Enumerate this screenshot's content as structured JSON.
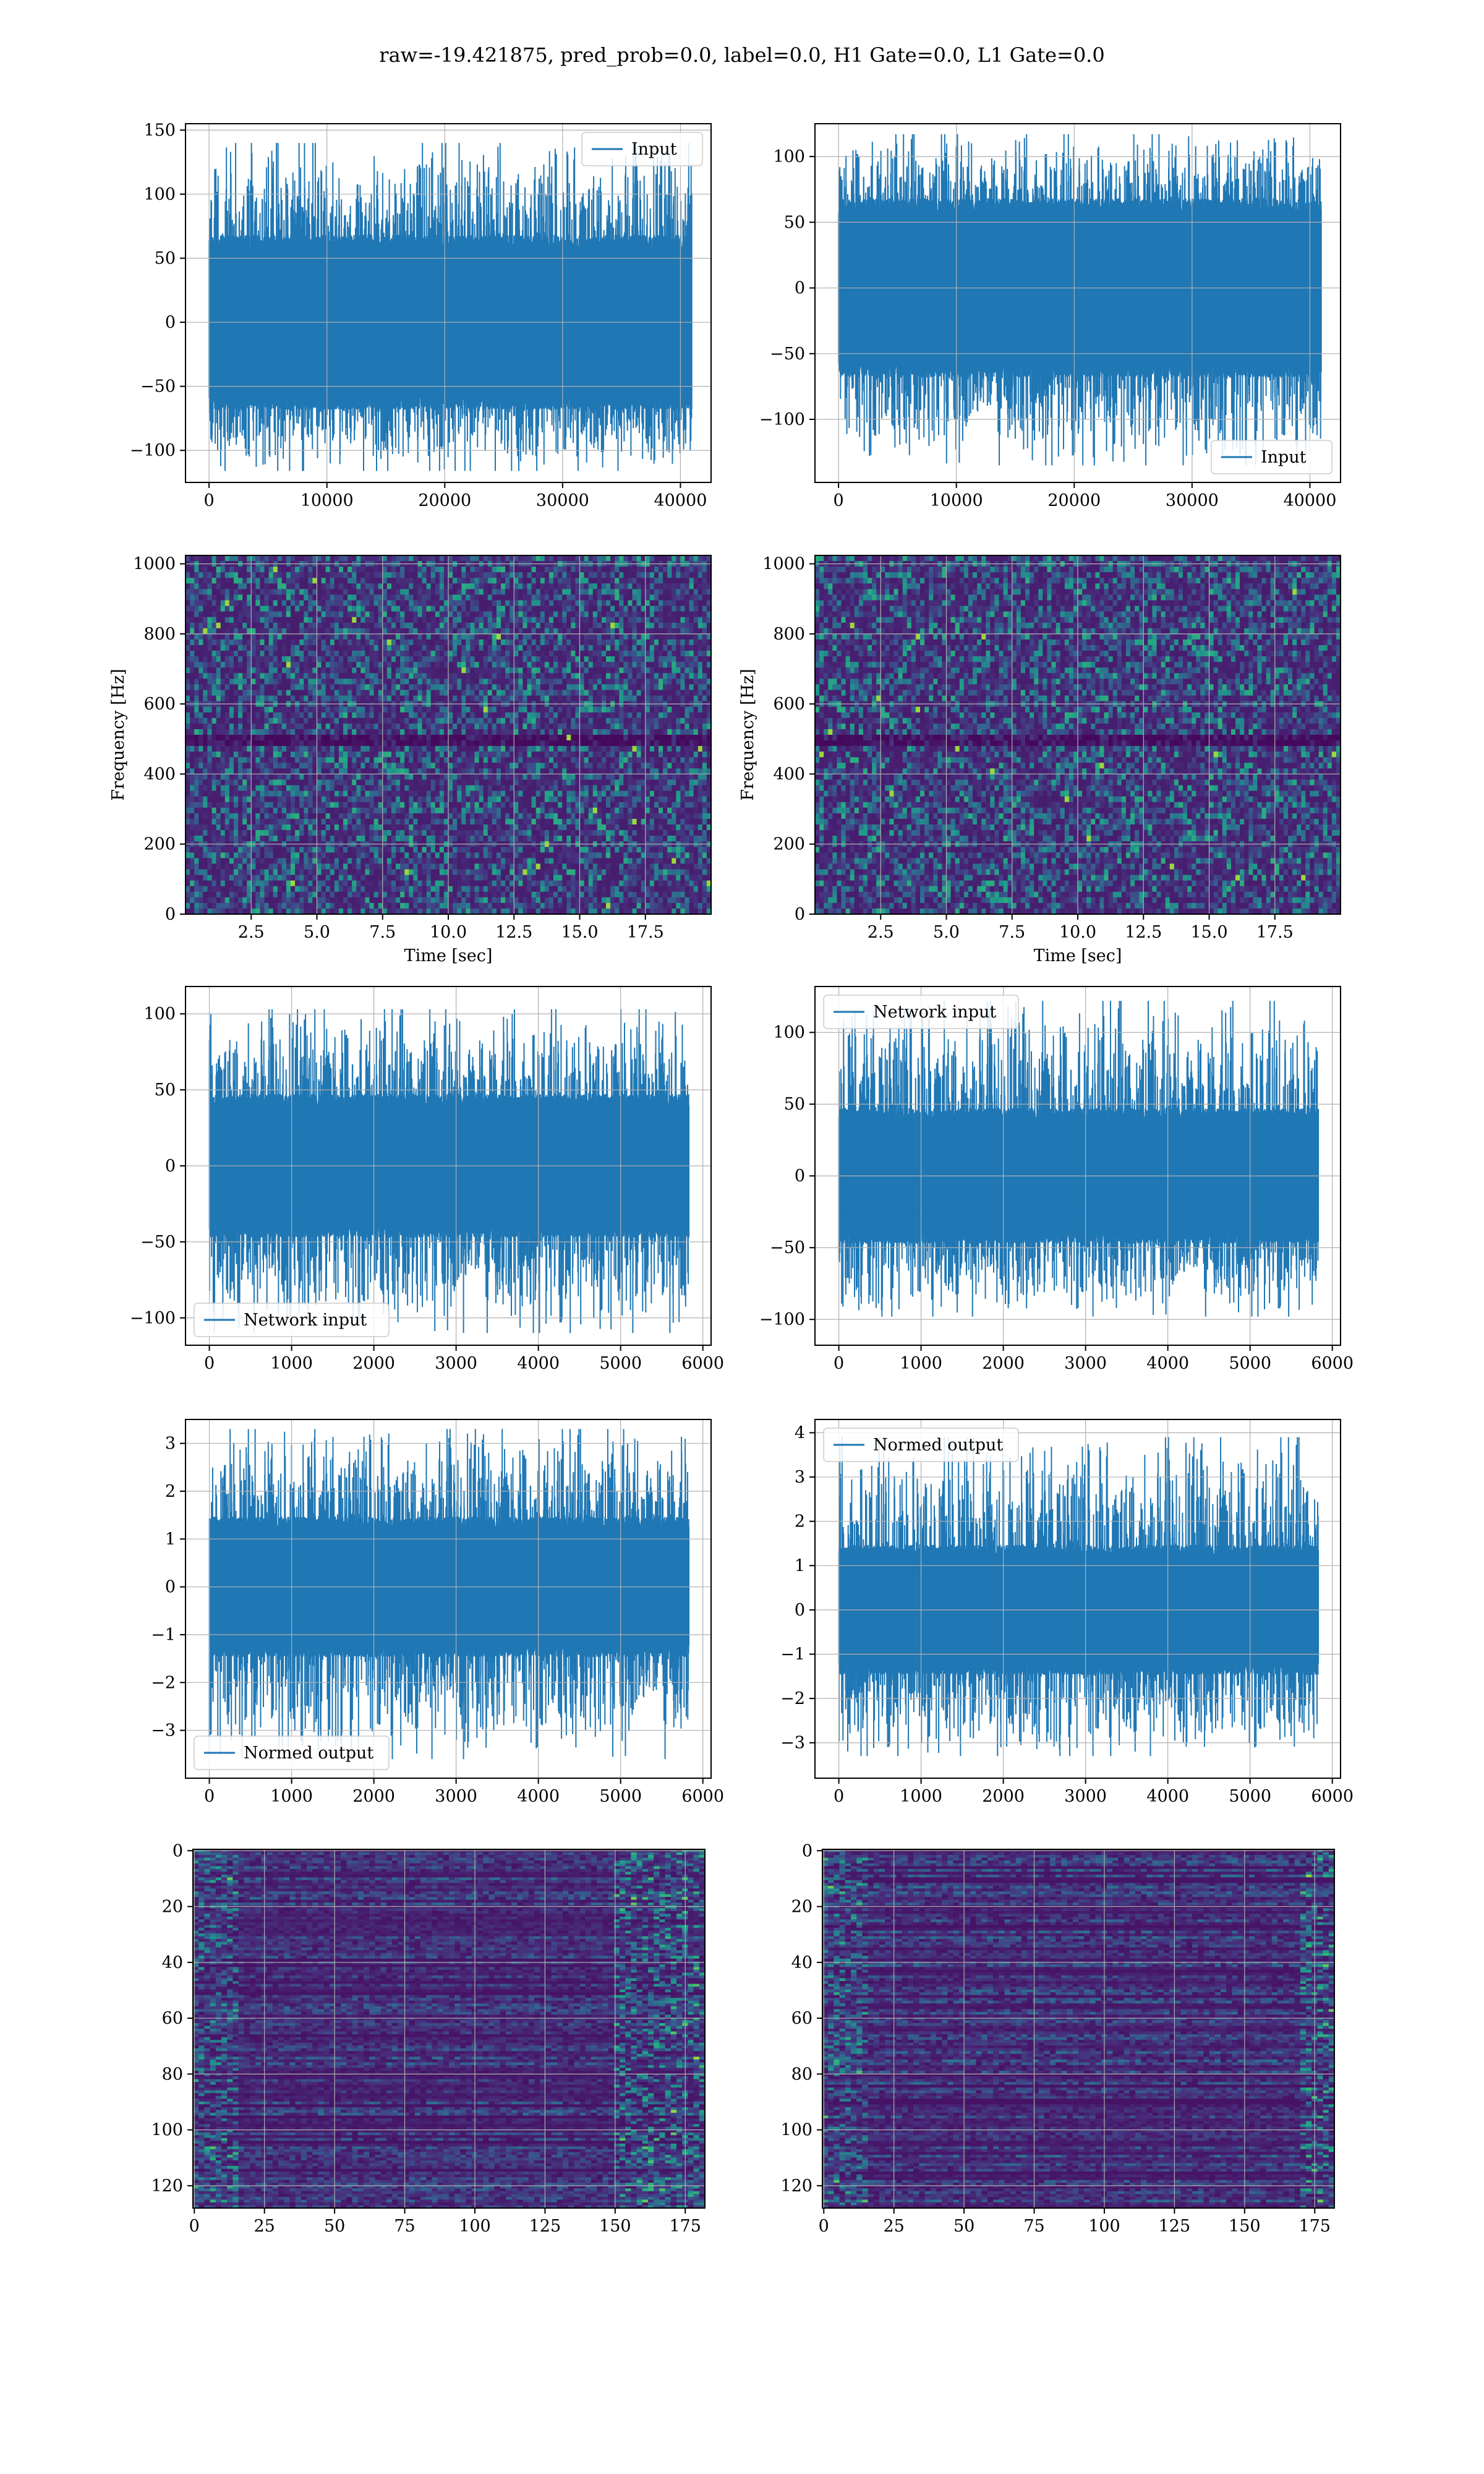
{
  "figure": {
    "suptitle": "raw=-19.421875, pred_prob=0.0, label=0.0, H1 Gate=0.0, L1 Gate=0.0"
  },
  "colors": {
    "series": "#1f77b4",
    "grid": "#b0b0b0",
    "colormap": "viridis"
  },
  "chart_data": [
    {
      "id": "input-left",
      "type": "line",
      "legend": "Input",
      "legend_loc": "upper right",
      "xlim": [
        -2000,
        42600
      ],
      "ylim": [
        -125,
        155
      ],
      "xticks": [
        0,
        10000,
        20000,
        30000,
        40000
      ],
      "yticks": [
        -100,
        -50,
        0,
        50,
        100,
        150
      ],
      "series": [
        {
          "name": "Input",
          "x_range": [
            0,
            40960
          ],
          "core_amplitude": 65,
          "peak_max": 140,
          "peak_min": -116,
          "n_samples": 40960
        }
      ]
    },
    {
      "id": "input-right",
      "type": "line",
      "legend": "Input",
      "legend_loc": "lower right",
      "xlim": [
        -2000,
        42600
      ],
      "ylim": [
        -148,
        125
      ],
      "xticks": [
        0,
        10000,
        20000,
        30000,
        40000
      ],
      "yticks": [
        -100,
        -50,
        0,
        50,
        100
      ],
      "series": [
        {
          "name": "Input",
          "x_range": [
            0,
            40960
          ],
          "core_amplitude": 65,
          "peak_max": 117,
          "peak_min": -135,
          "n_samples": 40960
        }
      ]
    },
    {
      "id": "spectrogram-left",
      "type": "heatmap",
      "xlabel": "Time [sec]",
      "ylabel": "Frequency [Hz]",
      "xlim": [
        0,
        20
      ],
      "ylim": [
        0,
        1024
      ],
      "xticks": [
        2.5,
        5.0,
        7.5,
        10.0,
        12.5,
        15.0,
        17.5
      ],
      "yticks": [
        0,
        200,
        400,
        600,
        800,
        1000
      ],
      "colormap": "viridis",
      "notes": "noise-like spectrogram with dark horizontal band near 500 Hz"
    },
    {
      "id": "spectrogram-right",
      "type": "heatmap",
      "xlabel": "Time [sec]",
      "ylabel": "Frequency [Hz]",
      "xlim": [
        0,
        20
      ],
      "ylim": [
        0,
        1024
      ],
      "xticks": [
        2.5,
        5.0,
        7.5,
        10.0,
        12.5,
        15.0,
        17.5
      ],
      "yticks": [
        0,
        200,
        400,
        600,
        800,
        1000
      ],
      "colormap": "viridis",
      "notes": "noise-like spectrogram with dark horizontal band near 500 Hz"
    },
    {
      "id": "network-input-left",
      "type": "line",
      "legend": "Network input",
      "legend_loc": "lower left",
      "xlim": [
        -290,
        6100
      ],
      "ylim": [
        -118,
        118
      ],
      "xticks": [
        0,
        1000,
        2000,
        3000,
        4000,
        5000,
        6000
      ],
      "yticks": [
        -100,
        -50,
        0,
        50,
        100
      ],
      "series": [
        {
          "name": "Network input",
          "x_range": [
            0,
            5830
          ],
          "core_amplitude": 45,
          "peak_max": 103,
          "peak_min": -110,
          "n_samples": 5830
        }
      ]
    },
    {
      "id": "network-input-right",
      "type": "line",
      "legend": "Network input",
      "legend_loc": "upper left",
      "xlim": [
        -290,
        6100
      ],
      "ylim": [
        -118,
        132
      ],
      "xticks": [
        0,
        1000,
        2000,
        3000,
        4000,
        5000,
        6000
      ],
      "yticks": [
        -100,
        -50,
        0,
        50,
        100
      ],
      "series": [
        {
          "name": "Network input",
          "x_range": [
            0,
            5830
          ],
          "core_amplitude": 45,
          "peak_max": 122,
          "peak_min": -98,
          "n_samples": 5830
        }
      ]
    },
    {
      "id": "normed-output-left",
      "type": "line",
      "legend": "Normed output",
      "legend_loc": "lower left",
      "xlim": [
        -290,
        6100
      ],
      "ylim": [
        -4.0,
        3.5
      ],
      "xticks": [
        0,
        1000,
        2000,
        3000,
        4000,
        5000,
        6000
      ],
      "yticks": [
        -3,
        -2,
        -1,
        0,
        1,
        2,
        3
      ],
      "series": [
        {
          "name": "Normed output",
          "x_range": [
            0,
            5830
          ],
          "core_amplitude": 1.4,
          "peak_max": 3.3,
          "peak_min": -3.6,
          "n_samples": 5830
        }
      ]
    },
    {
      "id": "normed-output-right",
      "type": "line",
      "legend": "Normed output",
      "legend_loc": "upper left",
      "xlim": [
        -290,
        6100
      ],
      "ylim": [
        -3.8,
        4.3
      ],
      "xticks": [
        0,
        1000,
        2000,
        3000,
        4000,
        5000,
        6000
      ],
      "yticks": [
        -3,
        -2,
        -1,
        0,
        1,
        2,
        3,
        4
      ],
      "series": [
        {
          "name": "Normed output",
          "x_range": [
            0,
            5830
          ],
          "core_amplitude": 1.4,
          "peak_max": 3.9,
          "peak_min": -3.3,
          "n_samples": 5830
        }
      ]
    },
    {
      "id": "features-left",
      "type": "heatmap",
      "xlim": [
        -0.5,
        182
      ],
      "ylim": [
        128,
        -0.5
      ],
      "xticks": [
        0,
        25,
        50,
        75,
        100,
        125,
        150,
        175
      ],
      "yticks": [
        0,
        20,
        40,
        60,
        80,
        100,
        120
      ],
      "colormap": "viridis",
      "n_rows": 128,
      "n_cols": 182,
      "notes": "row-wise feature map, bright columns near 0-15 and 150-180"
    },
    {
      "id": "features-right",
      "type": "heatmap",
      "xlim": [
        -0.5,
        182
      ],
      "ylim": [
        128,
        -0.5
      ],
      "xticks": [
        0,
        25,
        50,
        75,
        100,
        125,
        150,
        175
      ],
      "yticks": [
        0,
        20,
        40,
        60,
        80,
        100,
        120
      ],
      "colormap": "viridis",
      "n_rows": 128,
      "n_cols": 182,
      "notes": "row-wise feature map, bright columns near 0-15 and 170-180"
    }
  ]
}
